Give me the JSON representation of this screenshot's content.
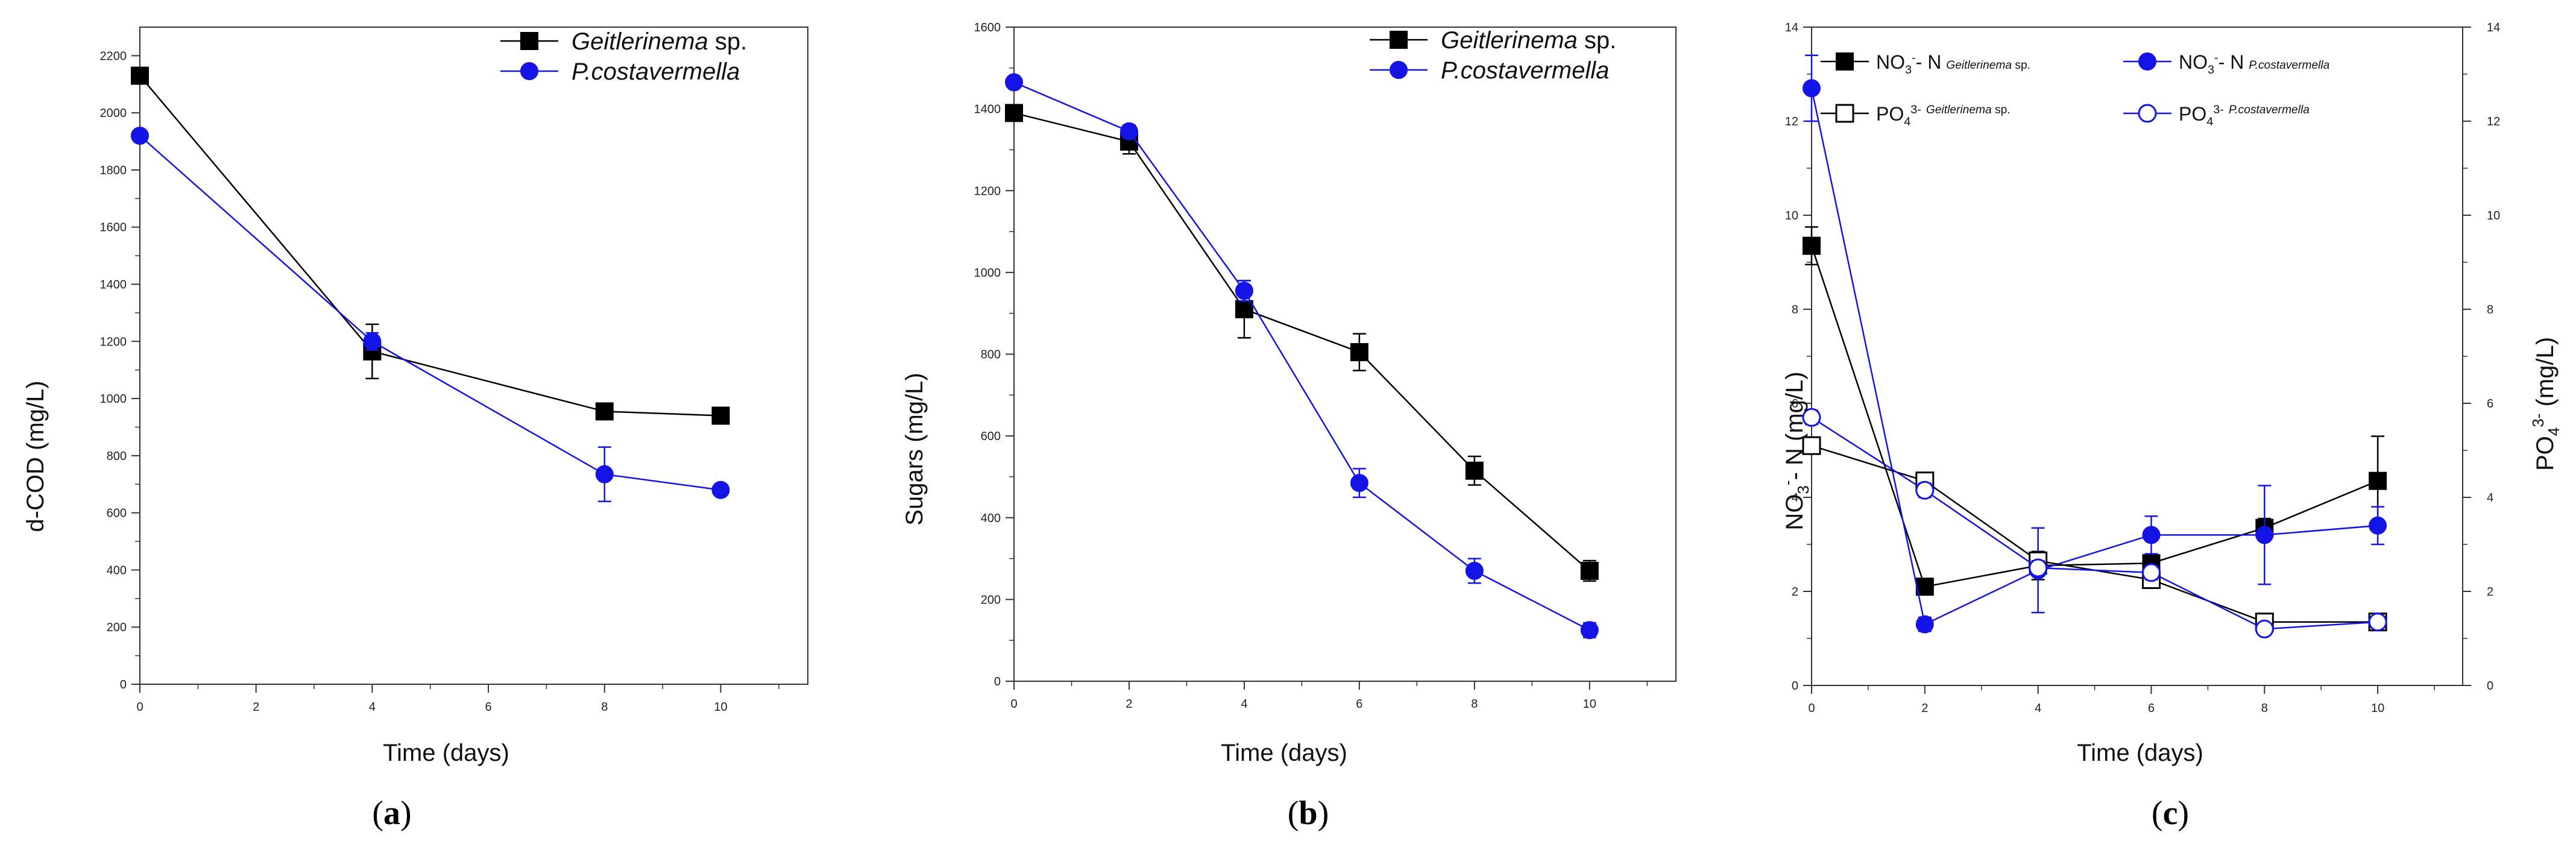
{
  "colors": {
    "series_black": "#000000",
    "series_blue": "#1414e6"
  },
  "chart_data": [
    {
      "id": "a",
      "type": "line",
      "caption": "(a)",
      "xlabel": "Time (days)",
      "ylabel": "d-COD (mg/L)",
      "xlim": [
        0,
        11.5
      ],
      "ylim": [
        0,
        2300
      ],
      "xticks": [
        0,
        2,
        4,
        6,
        8,
        10
      ],
      "yticks": [
        0,
        200,
        400,
        600,
        800,
        1000,
        1200,
        1400,
        1600,
        1800,
        2000,
        2200
      ],
      "legend_position": "top-right",
      "series": [
        {
          "name_italic": "Geitlerinema",
          "name_rest": " sp.",
          "color": "#000000",
          "marker": "square-filled",
          "x": [
            0,
            4,
            8,
            10
          ],
          "y": [
            2130,
            1165,
            955,
            940
          ],
          "err": [
            0,
            95,
            20,
            15
          ]
        },
        {
          "name_italic": "P.costavermella",
          "name_rest": "",
          "color": "#1414e6",
          "marker": "circle-filled",
          "x": [
            0,
            4,
            8,
            10
          ],
          "y": [
            1920,
            1200,
            735,
            680
          ],
          "err": [
            0,
            30,
            95,
            20
          ]
        }
      ]
    },
    {
      "id": "b",
      "type": "line",
      "caption": "(b)",
      "xlabel": "Time (days)",
      "ylabel": "Sugars (mg/L)",
      "xlim": [
        0,
        11.5
      ],
      "ylim": [
        0,
        1600
      ],
      "xticks": [
        0,
        2,
        4,
        6,
        8,
        10
      ],
      "yticks": [
        0,
        200,
        400,
        600,
        800,
        1000,
        1200,
        1400,
        1600
      ],
      "legend_position": "top-right",
      "series": [
        {
          "name_italic": "Geitlerinema",
          "name_rest": " sp.",
          "color": "#000000",
          "marker": "square-filled",
          "x": [
            0,
            2,
            4,
            6,
            8,
            10
          ],
          "y": [
            1390,
            1320,
            910,
            805,
            515,
            270
          ],
          "err": [
            0,
            30,
            70,
            45,
            35,
            25
          ]
        },
        {
          "name_italic": "P.costavermella",
          "name_rest": "",
          "color": "#1414e6",
          "marker": "circle-filled",
          "x": [
            0,
            2,
            4,
            6,
            8,
            10
          ],
          "y": [
            1465,
            1345,
            955,
            485,
            270,
            125
          ],
          "err": [
            0,
            15,
            25,
            35,
            30,
            18
          ]
        }
      ]
    },
    {
      "id": "c",
      "type": "line",
      "caption": "(c)",
      "xlabel": "Time (days)",
      "ylabel": {
        "main": "NO",
        "sub": "3",
        "sup": "-",
        "rest": "- N (mg/L)"
      },
      "ylabel_right": {
        "main": "PO",
        "sub": "4",
        "sup": "3-",
        "rest": " (mg/L)"
      },
      "xlim": [
        0,
        11.5
      ],
      "ylim": [
        0,
        14
      ],
      "xticks": [
        0,
        2,
        4,
        6,
        8,
        10
      ],
      "yticks": [
        0,
        2,
        4,
        6,
        8,
        10,
        12,
        14
      ],
      "yticks_right": [
        0,
        2,
        4,
        6,
        8,
        10,
        12,
        14
      ],
      "legend_position": "top",
      "series": [
        {
          "label": {
            "main": "NO",
            "sub": "3",
            "sup": "-",
            "rest": "- N",
            "species": "Geitlerinema",
            "species_rest": " sp."
          },
          "color": "#000000",
          "marker": "square-filled",
          "x": [
            0,
            2,
            4,
            6,
            8,
            10
          ],
          "y": [
            9.35,
            2.1,
            2.55,
            2.6,
            3.35,
            4.35
          ],
          "err": [
            0.4,
            0.1,
            0.3,
            0.15,
            0.2,
            0.95
          ]
        },
        {
          "label": {
            "main": "NO",
            "sub": "3",
            "sup": "-",
            "rest": "- N",
            "species": "P.costavermella",
            "species_rest": ""
          },
          "color": "#1414e6",
          "marker": "circle-filled",
          "x": [
            0,
            2,
            4,
            6,
            8,
            10
          ],
          "y": [
            12.7,
            1.3,
            2.45,
            3.2,
            3.2,
            3.4
          ],
          "err": [
            0.7,
            0.15,
            0.9,
            0.4,
            1.05,
            0.4
          ]
        },
        {
          "label": {
            "main": "PO",
            "sub": "4",
            "sup": "3-",
            "rest": "",
            "species": "Geitlerinema",
            "species_rest": " sp."
          },
          "color": "#000000",
          "marker": "square-open",
          "x": [
            0,
            2,
            4,
            6,
            8,
            10
          ],
          "y": [
            5.1,
            4.35,
            2.65,
            2.25,
            1.35,
            1.35
          ],
          "err": [
            0.12,
            0.12,
            0.12,
            0.12,
            0.08,
            0.08
          ]
        },
        {
          "label": {
            "main": "PO",
            "sub": "4",
            "sup": "3-",
            "rest": "",
            "species": "P.costavermella",
            "species_rest": ""
          },
          "color": "#1414e6",
          "marker": "circle-open",
          "x": [
            0,
            2,
            4,
            6,
            8,
            10
          ],
          "y": [
            5.7,
            4.15,
            2.5,
            2.4,
            1.2,
            1.35
          ],
          "err": [
            0.15,
            0.15,
            0.15,
            0.15,
            0.1,
            0.1
          ]
        }
      ]
    }
  ]
}
